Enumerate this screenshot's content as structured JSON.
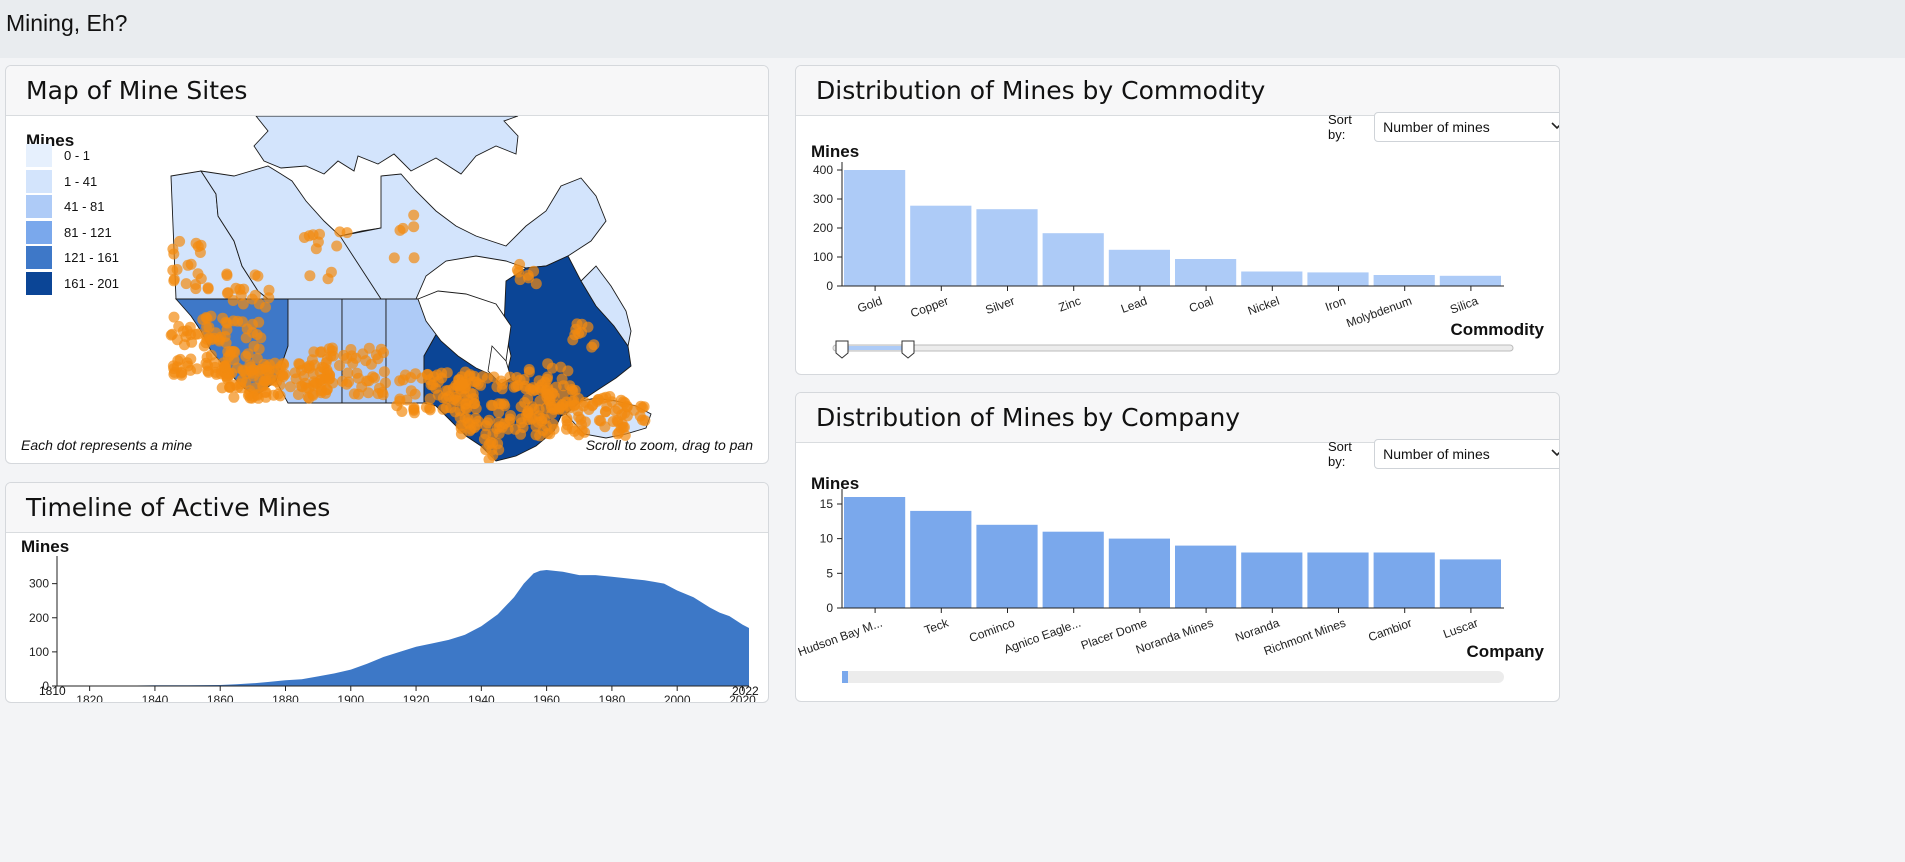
{
  "app": {
    "title": "Mining, Eh?"
  },
  "map": {
    "title": "Map of Mine Sites",
    "legend_title": "Mines",
    "legend": [
      {
        "label": "0 - 1",
        "color": "#e6f0fd"
      },
      {
        "label": "1 - 41",
        "color": "#d3e4fc"
      },
      {
        "label": "41 - 81",
        "color": "#aecbf7"
      },
      {
        "label": "81 - 121",
        "color": "#7aa8ec"
      },
      {
        "label": "121 - 161",
        "color": "#3e78c8"
      },
      {
        "label": "161 - 201",
        "color": "#0b4596"
      }
    ],
    "dot_color": "#f28a0f",
    "note_left": "Each dot represents a mine",
    "note_right": "Scroll to zoom, drag to pan"
  },
  "timeline": {
    "title": "Timeline of Active Mines",
    "ylabel": "Mines",
    "range_start": "1810",
    "range_end": "2022",
    "color": "#3d78c7"
  },
  "commodity": {
    "title": "Distribution of Mines by Commodity",
    "sort_label": "Sort by:",
    "sort_value": "Number of mines",
    "ylabel": "Mines",
    "xlabel": "Commodity",
    "color": "#adcbf7"
  },
  "company": {
    "title": "Distribution of Mines by Company",
    "sort_label": "Sort by:",
    "sort_value": "Number of mines",
    "ylabel": "Mines",
    "xlabel": "Company",
    "color": "#7aa8ec"
  },
  "chart_data": [
    {
      "type": "area",
      "x": [
        1810,
        1820,
        1830,
        1840,
        1850,
        1860,
        1865,
        1870,
        1875,
        1880,
        1885,
        1890,
        1895,
        1900,
        1905,
        1910,
        1915,
        1920,
        1925,
        1930,
        1935,
        1940,
        1945,
        1950,
        1953,
        1956,
        1958,
        1960,
        1965,
        1970,
        1975,
        1980,
        1985,
        1990,
        1993,
        1996,
        2000,
        2005,
        2010,
        2013,
        2016,
        2020,
        2022
      ],
      "values": [
        0,
        1,
        1,
        2,
        2,
        3,
        5,
        8,
        12,
        17,
        20,
        28,
        37,
        48,
        65,
        85,
        100,
        115,
        125,
        135,
        150,
        175,
        210,
        260,
        300,
        330,
        338,
        340,
        335,
        325,
        325,
        320,
        315,
        310,
        305,
        300,
        280,
        260,
        230,
        215,
        205,
        180,
        170
      ],
      "xlabel": "",
      "ylabel": "Mines",
      "xlim": [
        1810,
        2022
      ],
      "ylim": [
        0,
        340
      ],
      "xticks": [
        1820,
        1840,
        1860,
        1880,
        1900,
        1920,
        1940,
        1960,
        1980,
        2000,
        2020
      ],
      "yticks": [
        0,
        100,
        200,
        300
      ]
    },
    {
      "type": "bar",
      "categories": [
        "Gold",
        "Copper",
        "Silver",
        "Zinc",
        "Lead",
        "Coal",
        "Nickel",
        "Iron",
        "Molybdenum",
        "Silica"
      ],
      "values": [
        400,
        277,
        265,
        182,
        125,
        93,
        50,
        47,
        38,
        35
      ],
      "xlabel": "Commodity",
      "ylabel": "Mines",
      "ylim": [
        0,
        400
      ],
      "yticks": [
        0,
        100,
        200,
        300,
        400
      ]
    },
    {
      "type": "bar",
      "categories": [
        "Hudson Bay M...",
        "Teck",
        "Cominco",
        "Agnico Eagle...",
        "Placer Dome",
        "Noranda Mines",
        "Noranda",
        "Richmont Mines",
        "Cambior",
        "Luscar"
      ],
      "values": [
        16,
        14,
        12,
        11,
        10,
        9,
        8,
        8,
        8,
        7
      ],
      "xlabel": "Company",
      "ylabel": "Mines",
      "ylim": [
        0,
        16
      ],
      "yticks": [
        0,
        5,
        10,
        15
      ]
    }
  ]
}
